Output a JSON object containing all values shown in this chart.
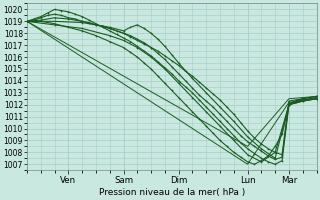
{
  "xlabel": "Pression niveau de la mer( hPa )",
  "ylim": [
    1006.5,
    1020.5
  ],
  "xlim": [
    0,
    126
  ],
  "background_color": "#c8e8e0",
  "grid_color": "#a8ccc8",
  "line_color": "#1a5c20",
  "day_ticks": [
    18,
    42,
    66,
    96,
    114
  ],
  "day_labels": [
    "Ven",
    "Sam",
    "Dim",
    "Lun",
    "Mar"
  ],
  "yticks": [
    1007,
    1008,
    1009,
    1010,
    1011,
    1012,
    1013,
    1014,
    1015,
    1016,
    1017,
    1018,
    1019,
    1020
  ],
  "lines": [
    {
      "x": [
        0,
        96,
        114,
        126
      ],
      "y": [
        1019.0,
        1008.5,
        1012.5,
        1012.7
      ],
      "marker": null,
      "lw": 0.7
    },
    {
      "x": [
        0,
        96,
        114,
        126
      ],
      "y": [
        1019.0,
        1007.0,
        1012.2,
        1012.5
      ],
      "marker": null,
      "lw": 0.7
    },
    {
      "x": [
        0,
        3,
        6,
        9,
        12,
        15,
        18,
        21,
        24,
        27,
        30,
        33,
        36,
        39,
        42,
        45,
        48,
        51,
        54,
        57,
        60,
        63,
        66,
        69,
        72,
        75,
        78,
        81,
        84,
        87,
        90,
        93,
        96,
        99,
        102,
        105,
        108,
        111,
        114,
        117,
        120,
        123,
        126
      ],
      "y": [
        1019.0,
        1019.1,
        1019.3,
        1019.5,
        1019.6,
        1019.5,
        1019.3,
        1019.2,
        1019.0,
        1018.9,
        1018.7,
        1018.6,
        1018.4,
        1018.2,
        1018.0,
        1017.7,
        1017.4,
        1017.1,
        1016.8,
        1016.5,
        1016.1,
        1015.7,
        1015.3,
        1014.8,
        1014.4,
        1013.9,
        1013.4,
        1012.9,
        1012.4,
        1011.8,
        1011.2,
        1010.5,
        1009.8,
        1009.2,
        1008.7,
        1008.3,
        1008.0,
        1007.8,
        1012.3,
        1012.4,
        1012.5,
        1012.6,
        1012.7
      ],
      "marker": ".",
      "markersize": 1.8,
      "lw": 0.8
    },
    {
      "x": [
        0,
        3,
        6,
        9,
        12,
        15,
        18,
        21,
        24,
        27,
        30,
        33,
        36,
        39,
        42,
        45,
        48,
        51,
        54,
        57,
        60,
        63,
        66,
        69,
        72,
        75,
        78,
        81,
        84,
        87,
        90,
        93,
        96,
        99,
        102,
        105,
        108,
        111,
        114,
        117,
        120,
        126
      ],
      "y": [
        1019.0,
        1019.2,
        1019.4,
        1019.7,
        1020.0,
        1019.9,
        1019.8,
        1019.6,
        1019.4,
        1019.1,
        1018.8,
        1018.5,
        1018.2,
        1017.9,
        1017.6,
        1017.3,
        1016.9,
        1016.5,
        1016.1,
        1015.6,
        1015.1,
        1014.6,
        1014.0,
        1013.5,
        1013.0,
        1012.4,
        1011.8,
        1011.2,
        1010.6,
        1010.0,
        1009.4,
        1008.8,
        1008.3,
        1007.9,
        1007.5,
        1007.2,
        1007.0,
        1007.3,
        1012.0,
        1012.2,
        1012.4,
        1012.6
      ],
      "marker": ".",
      "markersize": 1.8,
      "lw": 0.8
    },
    {
      "x": [
        0,
        6,
        12,
        18,
        24,
        30,
        36,
        42,
        45,
        48,
        51,
        54,
        57,
        60,
        63,
        66,
        69,
        72,
        75,
        78,
        81,
        84,
        87,
        90,
        93,
        96,
        99,
        102,
        105,
        108,
        111,
        114,
        117,
        120,
        126
      ],
      "y": [
        1019.0,
        1019.1,
        1019.3,
        1019.2,
        1019.0,
        1018.7,
        1018.4,
        1018.0,
        1017.8,
        1017.5,
        1017.2,
        1016.8,
        1016.3,
        1015.8,
        1015.2,
        1014.6,
        1014.0,
        1013.4,
        1012.8,
        1012.3,
        1011.8,
        1011.2,
        1010.6,
        1010.0,
        1009.4,
        1008.9,
        1008.5,
        1008.1,
        1007.7,
        1007.4,
        1007.6,
        1012.1,
        1012.3,
        1012.5,
        1012.7
      ],
      "marker": ".",
      "markersize": 1.8,
      "lw": 0.8
    },
    {
      "x": [
        0,
        6,
        12,
        18,
        24,
        30,
        36,
        42,
        45,
        48,
        51,
        54,
        57,
        60,
        63,
        66,
        69,
        72,
        75,
        78,
        81,
        84,
        87,
        90,
        93,
        96,
        99,
        102,
        105,
        108,
        111,
        114,
        117,
        126
      ],
      "y": [
        1019.0,
        1019.0,
        1018.8,
        1018.5,
        1018.2,
        1017.8,
        1017.3,
        1016.8,
        1016.4,
        1016.0,
        1015.5,
        1015.0,
        1014.4,
        1013.8,
        1013.2,
        1012.6,
        1012.0,
        1011.4,
        1010.8,
        1010.2,
        1009.6,
        1009.0,
        1008.5,
        1008.0,
        1007.6,
        1007.2,
        1007.0,
        1007.3,
        1007.7,
        1008.5,
        1009.5,
        1012.0,
        1012.3,
        1012.5
      ],
      "marker": ".",
      "markersize": 1.8,
      "lw": 0.8
    },
    {
      "x": [
        0,
        12,
        24,
        36,
        42,
        45,
        48,
        51,
        54,
        57,
        60,
        63,
        66,
        72,
        78,
        84,
        90,
        96,
        102,
        108,
        114,
        120,
        126
      ],
      "y": [
        1019.0,
        1019.0,
        1018.9,
        1018.5,
        1018.2,
        1018.5,
        1018.7,
        1018.4,
        1018.0,
        1017.5,
        1016.9,
        1016.2,
        1015.5,
        1014.2,
        1013.0,
        1011.8,
        1010.6,
        1009.3,
        1008.3,
        1007.5,
        1012.0,
        1012.3,
        1012.5
      ],
      "marker": ".",
      "markersize": 1.8,
      "lw": 0.8
    },
    {
      "x": [
        0,
        12,
        24,
        36,
        42,
        48,
        54,
        60,
        66,
        72,
        78,
        84,
        90,
        96,
        102,
        108,
        114,
        120,
        126
      ],
      "y": [
        1019.0,
        1018.7,
        1018.4,
        1017.8,
        1017.4,
        1016.8,
        1016.0,
        1015.0,
        1013.8,
        1012.6,
        1011.4,
        1010.2,
        1009.0,
        1007.8,
        1007.2,
        1008.0,
        1012.0,
        1012.3,
        1012.5
      ],
      "marker": ".",
      "markersize": 1.8,
      "lw": 0.8
    }
  ]
}
